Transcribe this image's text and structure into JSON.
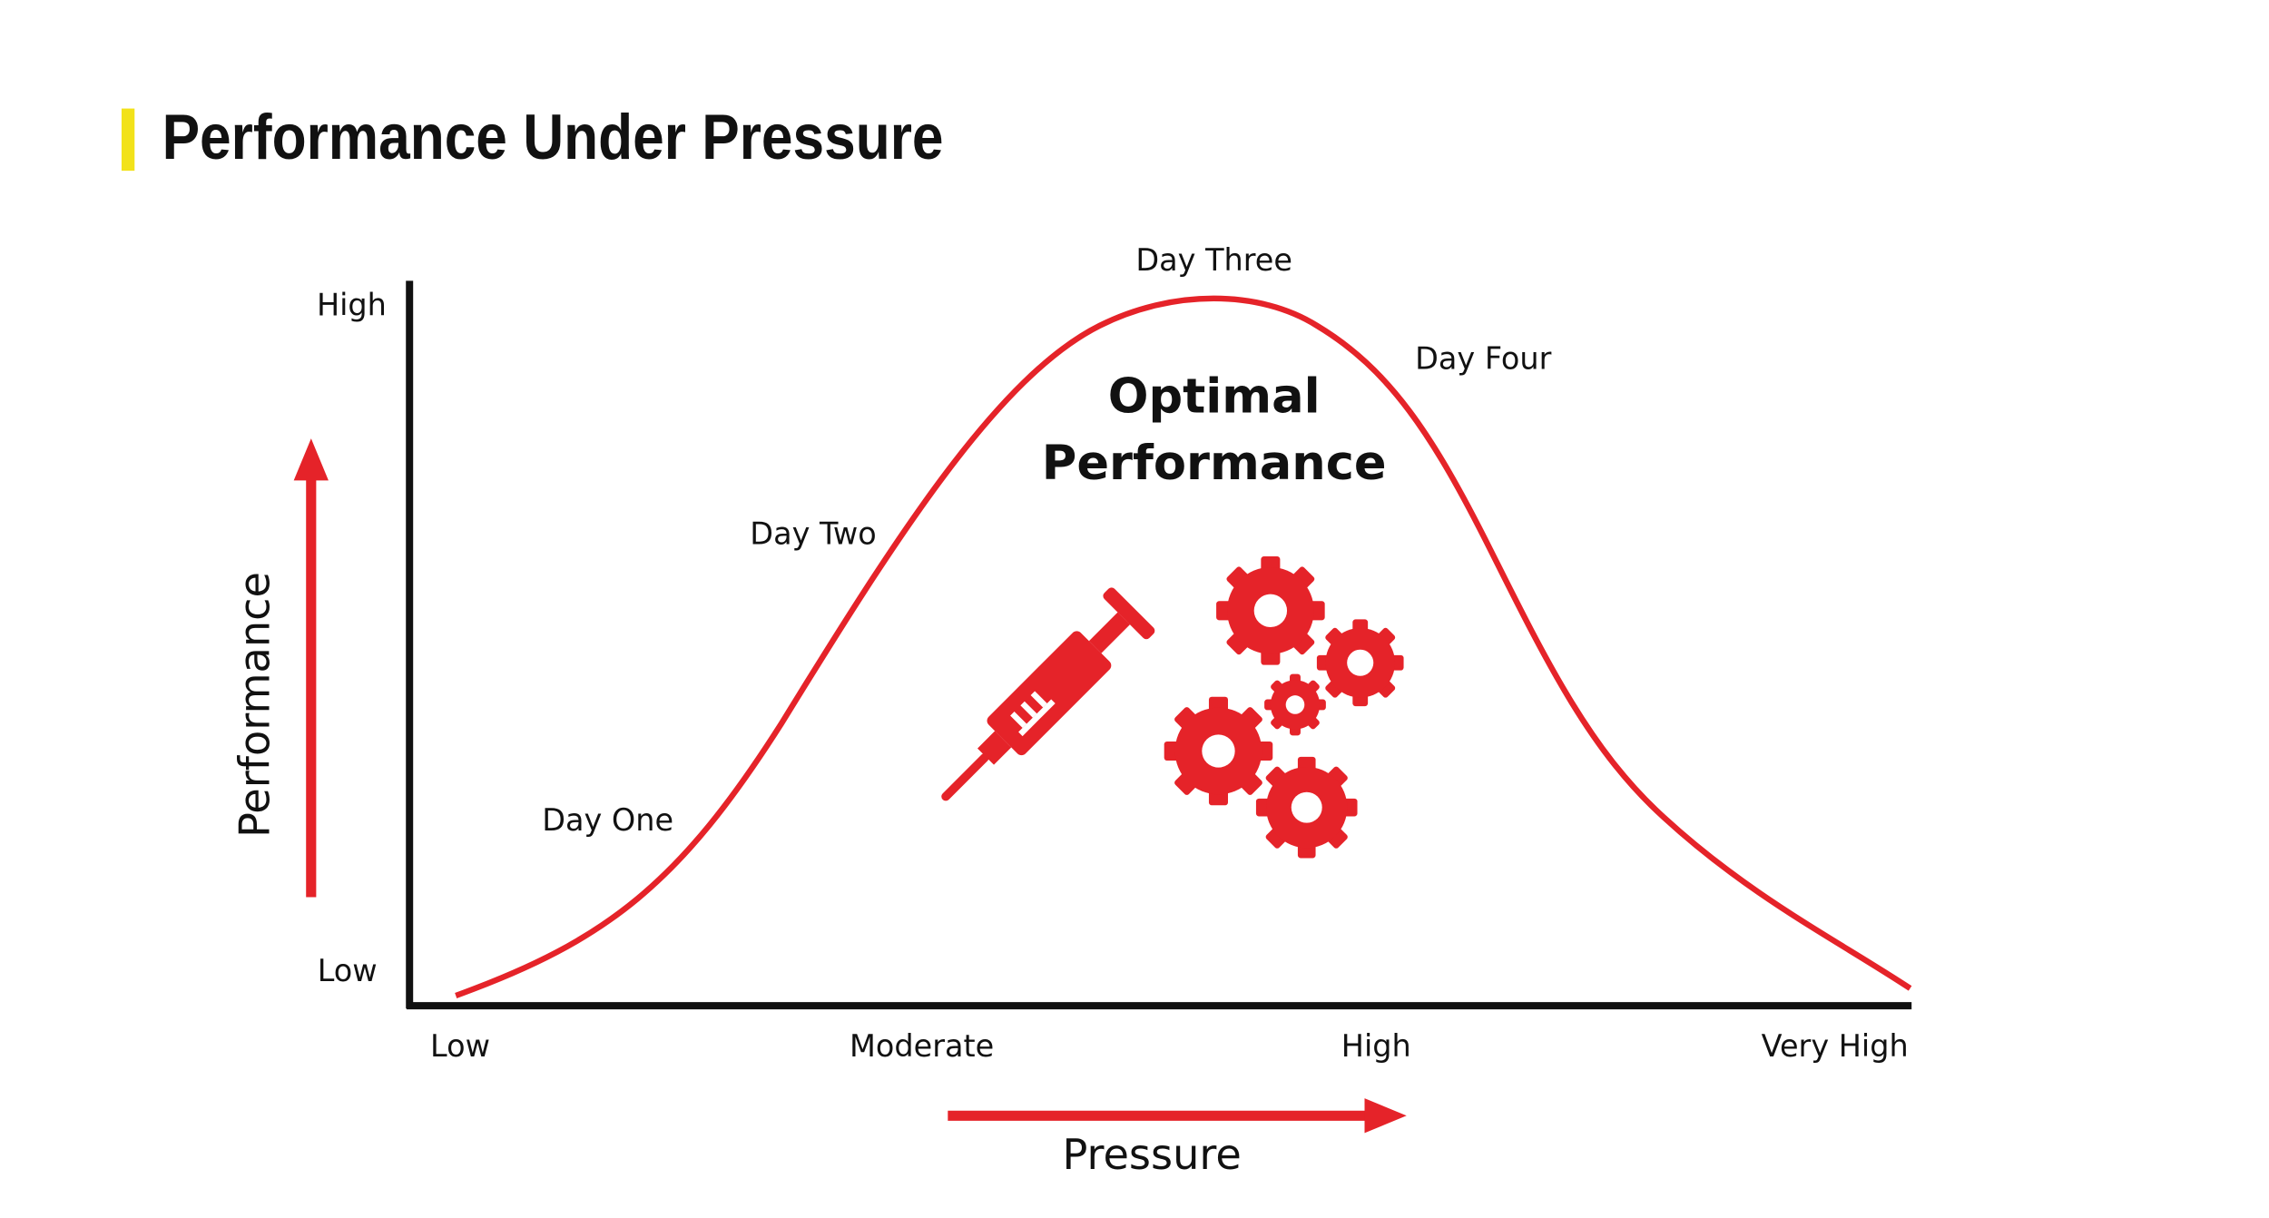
{
  "header": {
    "title": "Performance Under Pressure"
  },
  "diagram": {
    "y_axis": {
      "label": "Performance",
      "ticks": [
        "Low",
        "High"
      ]
    },
    "x_axis": {
      "label": "Pressure",
      "ticks": [
        "Low",
        "Moderate",
        "High",
        "Very High"
      ]
    },
    "curve_labels": [
      "Day One",
      "Day Two",
      "Day Three",
      "Day Four"
    ],
    "center_label": [
      "Optimal",
      "Performance"
    ]
  }
}
